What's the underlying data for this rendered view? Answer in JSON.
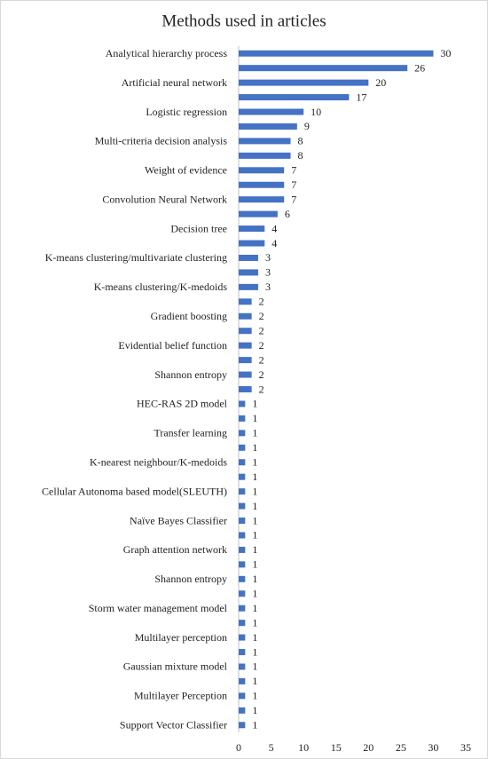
{
  "chart_data": {
    "type": "barh",
    "title": "Methods used in articles",
    "categories": [
      "Analytical hierarchy process",
      null,
      "Artificial neural network",
      null,
      "Logistic regression",
      null,
      "Multi-criteria decision analysis",
      null,
      "Weight of evidence",
      null,
      "Convolution Neural Network",
      null,
      "Decision tree",
      null,
      "K-means clustering/multivariate clustering",
      null,
      "K-means clustering/K-medoids",
      null,
      "Gradient boosting",
      null,
      "Evidential belief function",
      null,
      "Shannon entropy",
      null,
      "HEC-RAS 2D model",
      null,
      "Transfer learning",
      null,
      "K-nearest neighbour/K-medoids",
      null,
      "Cellular Autonoma based model(SLEUTH)",
      null,
      "Naïve Bayes Classifier",
      null,
      "Graph attention network",
      null,
      "Shannon entropy",
      null,
      "Storm water management model",
      null,
      "Multilayer perception",
      null,
      "Gaussian mixture model",
      null,
      "Multilayer Perception",
      null,
      "Support Vector Classifier"
    ],
    "values": [
      30,
      26,
      20,
      17,
      10,
      9,
      8,
      8,
      7,
      7,
      7,
      6,
      4,
      4,
      3,
      3,
      3,
      2,
      2,
      2,
      2,
      2,
      2,
      2,
      1,
      1,
      1,
      1,
      1,
      1,
      1,
      1,
      1,
      1,
      1,
      1,
      1,
      1,
      1,
      1,
      1,
      1,
      1,
      1,
      1,
      1,
      1
    ],
    "color": "#4472c4",
    "xlim": [
      0,
      35
    ],
    "xticks": [
      0,
      5,
      10,
      15,
      20,
      25,
      30,
      35
    ],
    "grid": false
  }
}
